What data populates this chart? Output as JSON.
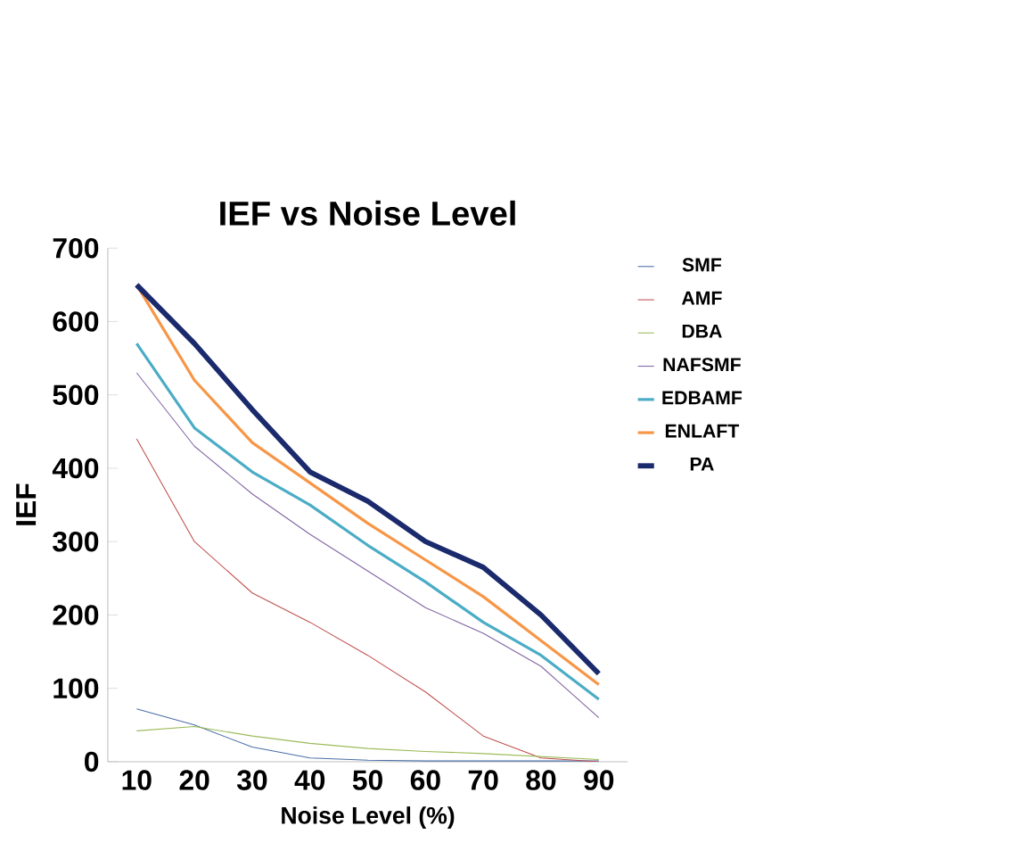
{
  "chart_data": {
    "type": "line",
    "title": "IEF vs Noise Level",
    "xlabel": "Noise Level (%)",
    "ylabel": "IEF",
    "categories": [
      "10",
      "20",
      "30",
      "40",
      "50",
      "60",
      "70",
      "80",
      "90"
    ],
    "ylim": [
      0,
      700
    ],
    "yticks": [
      0,
      100,
      200,
      300,
      400,
      500,
      600,
      700
    ],
    "grid": false,
    "legend": "top right",
    "marker": "none",
    "line_style": "solid",
    "series": [
      {
        "name": "SMF",
        "color": "#4a6fa5",
        "values": [
          72,
          50,
          20,
          5,
          2,
          1,
          1,
          1,
          1
        ]
      },
      {
        "name": "AMF",
        "color": "#c0504d",
        "values": [
          440,
          300,
          230,
          190,
          145,
          95,
          35,
          5,
          0
        ]
      },
      {
        "name": "DBA",
        "color": "#9bbb59",
        "values": [
          42,
          48,
          35,
          25,
          18,
          14,
          11,
          7,
          3
        ]
      },
      {
        "name": "NAFSMF",
        "color": "#8064a2",
        "values": [
          530,
          430,
          365,
          310,
          260,
          210,
          175,
          130,
          60
        ]
      },
      {
        "name": "EDBAMF",
        "color": "#4bacc6",
        "values": [
          570,
          455,
          395,
          350,
          295,
          245,
          190,
          145,
          85
        ]
      },
      {
        "name": "ENLAFT",
        "color": "#f79646",
        "values": [
          650,
          520,
          435,
          380,
          325,
          275,
          225,
          165,
          105
        ]
      },
      {
        "name": "PA",
        "color": "#1a2a6c",
        "values": [
          650,
          570,
          480,
          395,
          355,
          300,
          265,
          200,
          120
        ]
      }
    ]
  }
}
